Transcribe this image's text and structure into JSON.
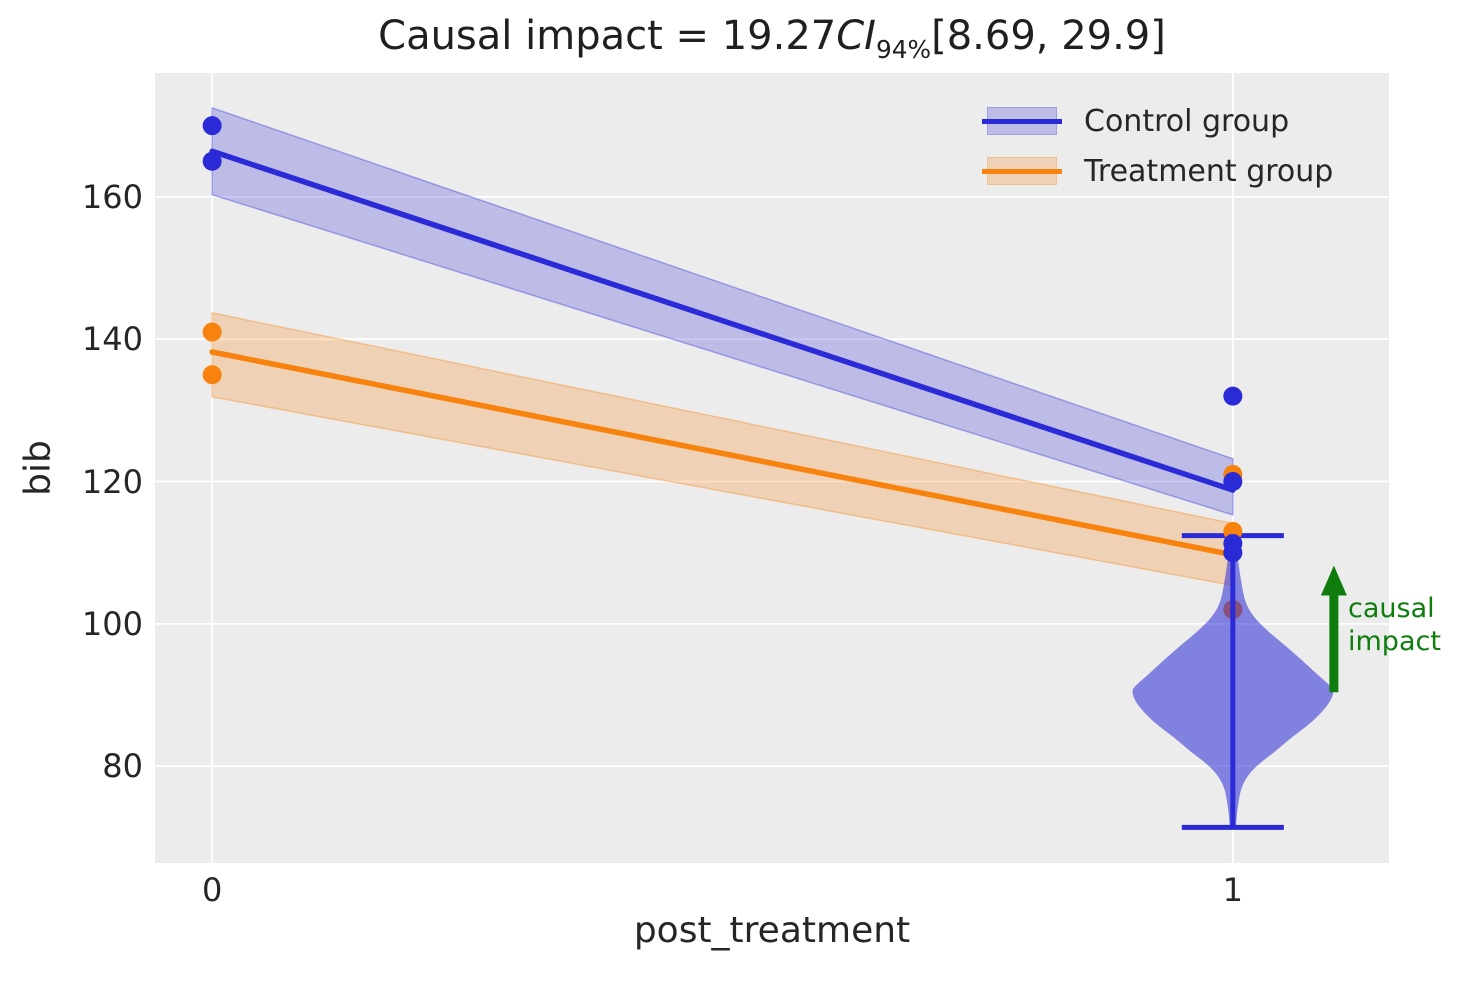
{
  "chart_data": {
    "type": "line",
    "title": "Causal impact = 19.27 CI_94% [8.69, 29.9]",
    "title_parts": {
      "prefix": "Causal impact = 19.27",
      "ci": "CI",
      "subscript": "94%",
      "interval": "[8.69, 29.9]"
    },
    "xlabel": "post_treatment",
    "ylabel": "bib",
    "xticks": [
      0,
      1
    ],
    "yticks": [
      160,
      140,
      120,
      100,
      80
    ],
    "xlim": [
      -0.056,
      1.153
    ],
    "ylim": [
      66.4,
      177.4
    ],
    "grid": true,
    "background": "#ececec",
    "gridline_color": "#ffffff",
    "legend_position": "upper right",
    "series": [
      {
        "name": "Control group",
        "color": "#2a2ad6",
        "line": {
          "x": [
            0,
            1
          ],
          "y": [
            166.4,
            118.8
          ]
        },
        "band": {
          "x": [
            0,
            1
          ],
          "upper": [
            172.5,
            123.2
          ],
          "lower": [
            160.3,
            115.3
          ]
        },
        "points": [
          [
            0,
            170
          ],
          [
            0,
            165
          ],
          [
            1,
            132
          ],
          [
            1,
            120
          ],
          [
            1,
            111.3
          ],
          [
            1,
            110
          ]
        ]
      },
      {
        "name": "Treatment group",
        "color": "#f8820e",
        "line": {
          "x": [
            0,
            1
          ],
          "y": [
            138.2,
            109.7
          ]
        },
        "band": {
          "x": [
            0,
            1
          ],
          "upper": [
            143.7,
            114.1
          ],
          "lower": [
            131.9,
            105.4
          ]
        },
        "points": [
          [
            0,
            141
          ],
          [
            0,
            135
          ],
          [
            1,
            121
          ],
          [
            1,
            113
          ]
        ],
        "points_under_violin": [
          [
            1,
            102
          ]
        ]
      }
    ],
    "violin": {
      "x": 1,
      "color": "#2a2ad6",
      "fill_opacity": 0.55,
      "mode": 90.7,
      "whisker_low": 71.4,
      "whisker_high": 112.4,
      "cap_halfwidth": 0.05,
      "profile": [
        [
          113.0,
          0.0015
        ],
        [
          110.0,
          0.004
        ],
        [
          106.0,
          0.008
        ],
        [
          103.0,
          0.012
        ],
        [
          101.0,
          0.02
        ],
        [
          99.0,
          0.034
        ],
        [
          97.0,
          0.051
        ],
        [
          95.0,
          0.067
        ],
        [
          93.0,
          0.082
        ],
        [
          91.5,
          0.094
        ],
        [
          90.7,
          0.099
        ],
        [
          89.5,
          0.097
        ],
        [
          88.0,
          0.09
        ],
        [
          86.0,
          0.076
        ],
        [
          84.0,
          0.057
        ],
        [
          82.0,
          0.041
        ],
        [
          80.5,
          0.027
        ],
        [
          79.0,
          0.016
        ],
        [
          77.0,
          0.008
        ],
        [
          74.5,
          0.005
        ],
        [
          72.5,
          0.0035
        ],
        [
          71.4,
          0.003
        ]
      ]
    },
    "annotation": {
      "text": "causal\nimpact",
      "color": "#0e7d0e",
      "arrow": {
        "x": 1.099,
        "y_from": 90.4,
        "y_to": 108.2
      }
    }
  }
}
